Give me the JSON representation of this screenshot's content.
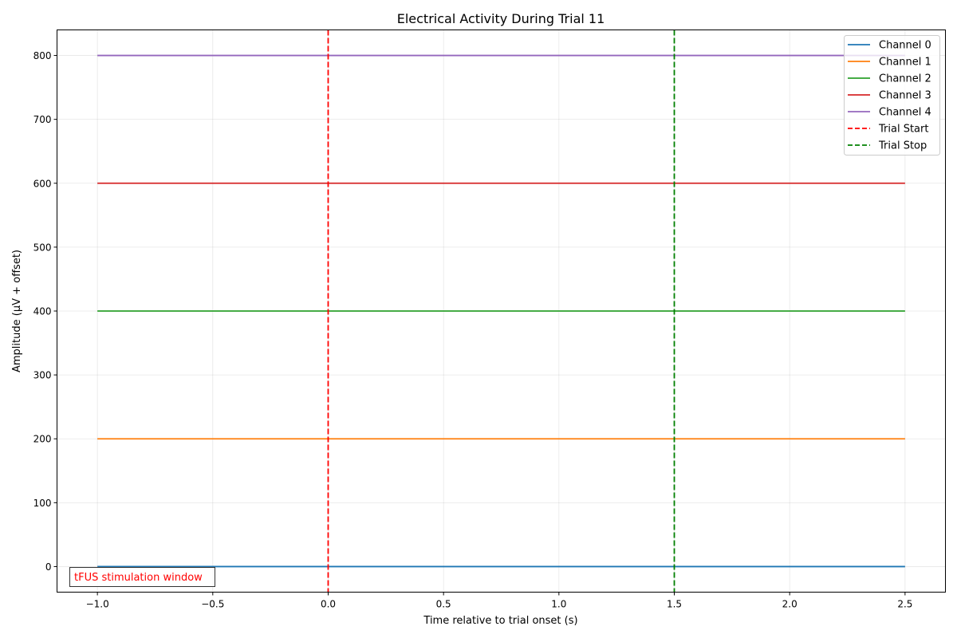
{
  "chart_data": {
    "type": "line",
    "title": "Electrical Activity During Trial 11",
    "xlabel": "Time relative to trial onset (s)",
    "ylabel": "Amplitude (µV + offset)",
    "xlim": [
      -1.175,
      2.675
    ],
    "ylim": [
      -40,
      840
    ],
    "xticks": [
      -1.0,
      -0.5,
      0.0,
      0.5,
      1.0,
      1.5,
      2.0,
      2.5
    ],
    "xtick_labels": [
      "−1.0",
      "−0.5",
      "0.0",
      "0.5",
      "1.0",
      "1.5",
      "2.0",
      "2.5"
    ],
    "yticks": [
      0,
      100,
      200,
      300,
      400,
      500,
      600,
      700,
      800
    ],
    "ytick_labels": [
      "0",
      "100",
      "200",
      "300",
      "400",
      "500",
      "600",
      "700",
      "800"
    ],
    "grid": true,
    "legend_position": "top-right",
    "series": [
      {
        "name": "Channel 0",
        "color": "#1f77b4",
        "x": [
          -1.0,
          2.5
        ],
        "y": [
          0,
          0
        ]
      },
      {
        "name": "Channel 1",
        "color": "#ff7f0e",
        "x": [
          -1.0,
          2.5
        ],
        "y": [
          200,
          200
        ]
      },
      {
        "name": "Channel 2",
        "color": "#2ca02c",
        "x": [
          -1.0,
          2.5
        ],
        "y": [
          400,
          400
        ]
      },
      {
        "name": "Channel 3",
        "color": "#d62728",
        "x": [
          -1.0,
          2.5
        ],
        "y": [
          600,
          600
        ]
      },
      {
        "name": "Channel 4",
        "color": "#9467bd",
        "x": [
          -1.0,
          2.5
        ],
        "y": [
          800,
          800
        ]
      }
    ],
    "vlines": [
      {
        "name": "Trial Start",
        "x": 0.0,
        "color": "#ff0000",
        "style": "dashed"
      },
      {
        "name": "Trial Stop",
        "x": 1.5,
        "color": "#008000",
        "style": "dashed"
      }
    ],
    "annotation": {
      "text": "tFUS stimulation window",
      "color": "#ff0000",
      "position": "bottom-left"
    }
  }
}
